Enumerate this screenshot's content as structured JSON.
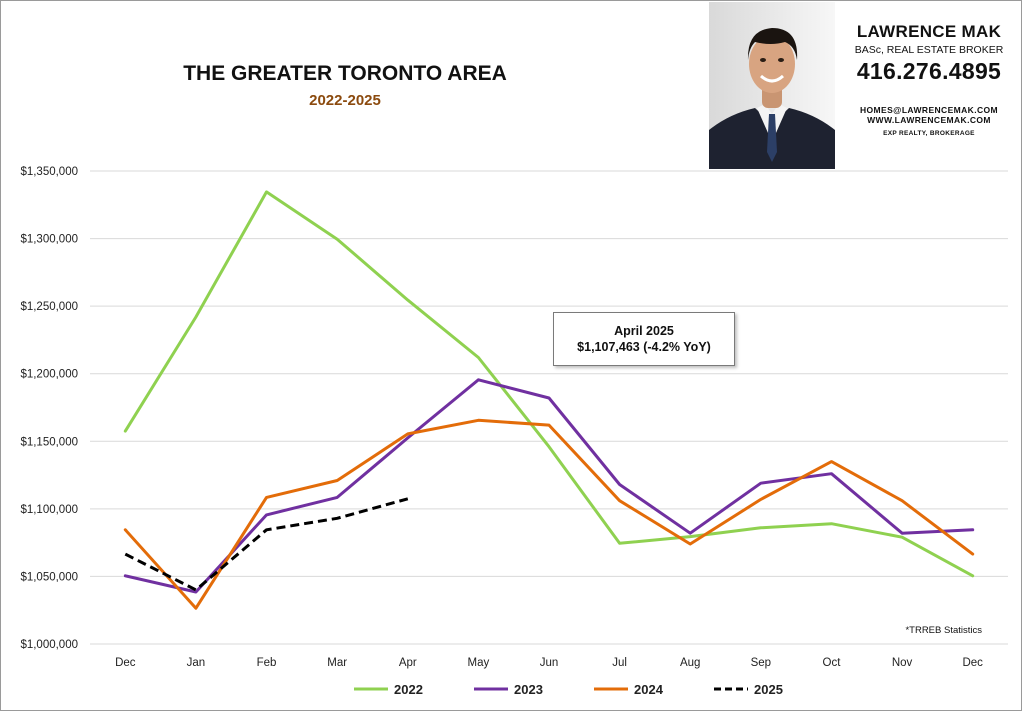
{
  "header": {
    "title": "THE GREATER TORONTO AREA",
    "subtitle": "2022-2025"
  },
  "agent": {
    "name": "LAWRENCE MAK",
    "credentials": "BASc, REAL ESTATE BROKER",
    "phone": "416.276.4895",
    "email": "HOMES@LAWRENCEMAK.COM",
    "website": "WWW.LAWRENCEMAK.COM",
    "brokerage": "EXP REALTY, BROKERAGE"
  },
  "callout": {
    "line1": "April 2025",
    "line2": "$1,107,463 (-4.2% YoY)"
  },
  "source_note": "*TRREB Statistics",
  "chart_data": {
    "type": "line",
    "title": "",
    "xlabel": "",
    "ylabel": "",
    "categories": [
      "Dec",
      "Jan",
      "Feb",
      "Mar",
      "Apr",
      "May",
      "Jun",
      "Jul",
      "Aug",
      "Sep",
      "Oct",
      "Nov",
      "Dec"
    ],
    "y_ticks": [
      1000000,
      1050000,
      1100000,
      1150000,
      1200000,
      1250000,
      1300000,
      1350000
    ],
    "y_tick_labels": [
      "$1,000,000",
      "$1,050,000",
      "$1,100,000",
      "$1,150,000",
      "$1,200,000",
      "$1,250,000",
      "$1,300,000",
      "$1,350,000"
    ],
    "ylim": [
      1000000,
      1350000
    ],
    "grid": true,
    "legend_position": "bottom",
    "series": [
      {
        "name": "2022",
        "color": "#8fd150",
        "dash": "solid",
        "values": [
          1157500,
          1242000,
          1334500,
          1299500,
          1254500,
          1212000,
          1146000,
          1074500,
          1079500,
          1086000,
          1089000,
          1079000,
          1050500
        ]
      },
      {
        "name": "2023",
        "color": "#7030a0",
        "dash": "solid",
        "values": [
          1050500,
          1038500,
          1095500,
          1108500,
          1152500,
          1195500,
          1182000,
          1118000,
          1082000,
          1119000,
          1126000,
          1082000,
          1084500
        ]
      },
      {
        "name": "2024",
        "color": "#e36c09",
        "dash": "solid",
        "values": [
          1084500,
          1026500,
          1108500,
          1121000,
          1155500,
          1165500,
          1162000,
          1106000,
          1074000,
          1107000,
          1135000,
          1106000,
          1066500
        ]
      },
      {
        "name": "2025",
        "color": "#000000",
        "dash": "dashed",
        "values": [
          1066500,
          1040000,
          1084500,
          1093000,
          1107463,
          null,
          null,
          null,
          null,
          null,
          null,
          null,
          null
        ]
      }
    ]
  }
}
